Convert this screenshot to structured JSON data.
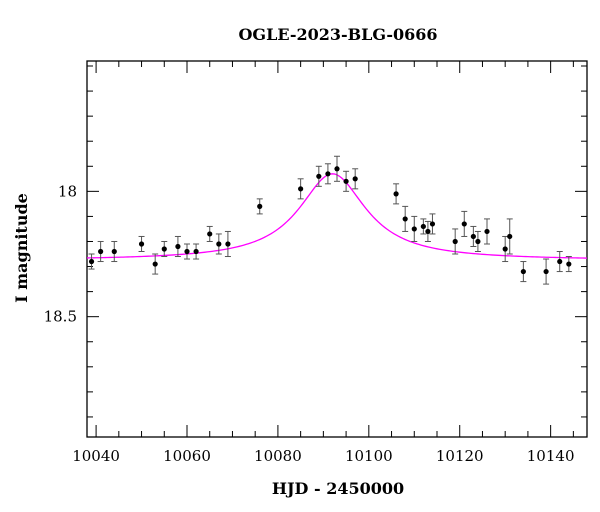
{
  "chart_data": {
    "type": "scatter",
    "title": "OGLE-2023-BLG-0666",
    "xlabel": "HJD - 2450000",
    "ylabel": "I magnitude",
    "xlim": [
      10038,
      10148
    ],
    "ylim": [
      18.98,
      17.48
    ],
    "y_inverted": true,
    "x_ticks": [
      10040,
      10060,
      10080,
      10100,
      10120,
      10140
    ],
    "x_tick_labels": [
      "10040",
      "10060",
      "10080",
      "10100",
      "10120",
      "10140"
    ],
    "y_major_ticks": [
      18.0,
      18.5
    ],
    "y_tick_labels": [
      "18",
      "18.5"
    ],
    "y_minor_step": 0.1,
    "grid": false,
    "model_color": "#ff00ff",
    "point_color": "#000000",
    "errorbar_color": "#555555",
    "model_curve": {
      "baseline_mag": 18.275,
      "peak_mag": 17.93,
      "peak_time": 10092,
      "half_width_days": 9.0
    },
    "observations": [
      {
        "t": 10039,
        "mag": 18.28,
        "err": 0.03
      },
      {
        "t": 10041,
        "mag": 18.24,
        "err": 0.04
      },
      {
        "t": 10044,
        "mag": 18.24,
        "err": 0.04
      },
      {
        "t": 10050,
        "mag": 18.21,
        "err": 0.03
      },
      {
        "t": 10053,
        "mag": 18.29,
        "err": 0.04
      },
      {
        "t": 10055,
        "mag": 18.23,
        "err": 0.03
      },
      {
        "t": 10058,
        "mag": 18.22,
        "err": 0.04
      },
      {
        "t": 10060,
        "mag": 18.24,
        "err": 0.03
      },
      {
        "t": 10062,
        "mag": 18.24,
        "err": 0.03
      },
      {
        "t": 10065,
        "mag": 18.17,
        "err": 0.03
      },
      {
        "t": 10067,
        "mag": 18.21,
        "err": 0.04
      },
      {
        "t": 10069,
        "mag": 18.21,
        "err": 0.05
      },
      {
        "t": 10076,
        "mag": 18.06,
        "err": 0.03
      },
      {
        "t": 10085,
        "mag": 17.99,
        "err": 0.04
      },
      {
        "t": 10089,
        "mag": 17.94,
        "err": 0.04
      },
      {
        "t": 10091,
        "mag": 17.93,
        "err": 0.04
      },
      {
        "t": 10093,
        "mag": 17.91,
        "err": 0.05
      },
      {
        "t": 10095,
        "mag": 17.96,
        "err": 0.04
      },
      {
        "t": 10097,
        "mag": 17.95,
        "err": 0.04
      },
      {
        "t": 10106,
        "mag": 18.01,
        "err": 0.04
      },
      {
        "t": 10108,
        "mag": 18.11,
        "err": 0.05
      },
      {
        "t": 10110,
        "mag": 18.15,
        "err": 0.05
      },
      {
        "t": 10112,
        "mag": 18.14,
        "err": 0.03
      },
      {
        "t": 10113,
        "mag": 18.16,
        "err": 0.04
      },
      {
        "t": 10114,
        "mag": 18.13,
        "err": 0.04
      },
      {
        "t": 10119,
        "mag": 18.2,
        "err": 0.05
      },
      {
        "t": 10121,
        "mag": 18.13,
        "err": 0.05
      },
      {
        "t": 10123,
        "mag": 18.18,
        "err": 0.04
      },
      {
        "t": 10124,
        "mag": 18.2,
        "err": 0.04
      },
      {
        "t": 10126,
        "mag": 18.16,
        "err": 0.05
      },
      {
        "t": 10130,
        "mag": 18.23,
        "err": 0.05
      },
      {
        "t": 10131,
        "mag": 18.18,
        "err": 0.07
      },
      {
        "t": 10134,
        "mag": 18.32,
        "err": 0.04
      },
      {
        "t": 10139,
        "mag": 18.32,
        "err": 0.05
      },
      {
        "t": 10142,
        "mag": 18.28,
        "err": 0.04
      },
      {
        "t": 10144,
        "mag": 18.29,
        "err": 0.03
      }
    ]
  }
}
